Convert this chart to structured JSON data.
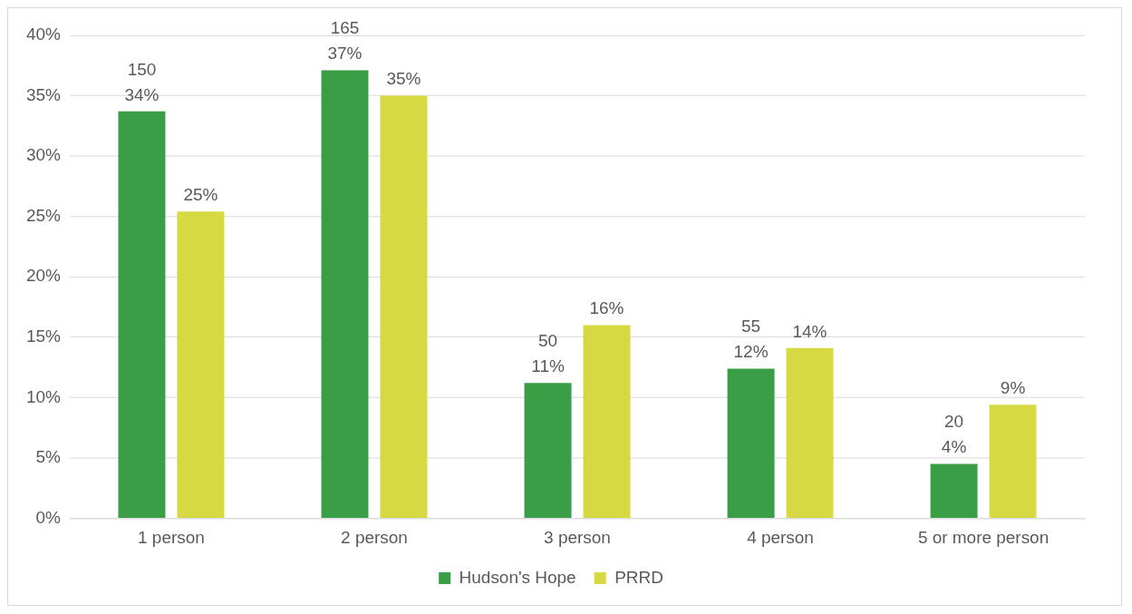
{
  "chart_data": {
    "type": "bar",
    "categories": [
      "1 person",
      "2 person",
      "3 person",
      "4 person",
      "5 or more person"
    ],
    "series": [
      {
        "name": "Hudson's Hope",
        "color": "#3a9e47",
        "values": [
          33.7,
          37.1,
          11.2,
          12.4,
          4.5
        ],
        "value_labels": [
          "150\n34%",
          "165\n37%",
          "50\n11%",
          "55\n12%",
          "20\n4%"
        ]
      },
      {
        "name": "PRRD",
        "color": "#d6d942",
        "values": [
          25.4,
          35.0,
          16.0,
          14.1,
          9.4
        ],
        "value_labels": [
          "25%",
          "35%",
          "16%",
          "14%",
          "9%"
        ]
      }
    ],
    "ylim": [
      0,
      40
    ],
    "yticks": [
      {
        "value": 0,
        "label": "0%"
      },
      {
        "value": 5,
        "label": "5%"
      },
      {
        "value": 10,
        "label": "10%"
      },
      {
        "value": 15,
        "label": "15%"
      },
      {
        "value": 20,
        "label": "20%"
      },
      {
        "value": 25,
        "label": "25%"
      },
      {
        "value": 30,
        "label": "30%"
      },
      {
        "value": 35,
        "label": "35%"
      },
      {
        "value": 40,
        "label": "40%"
      }
    ],
    "grid": "y",
    "legend": "bottom"
  }
}
